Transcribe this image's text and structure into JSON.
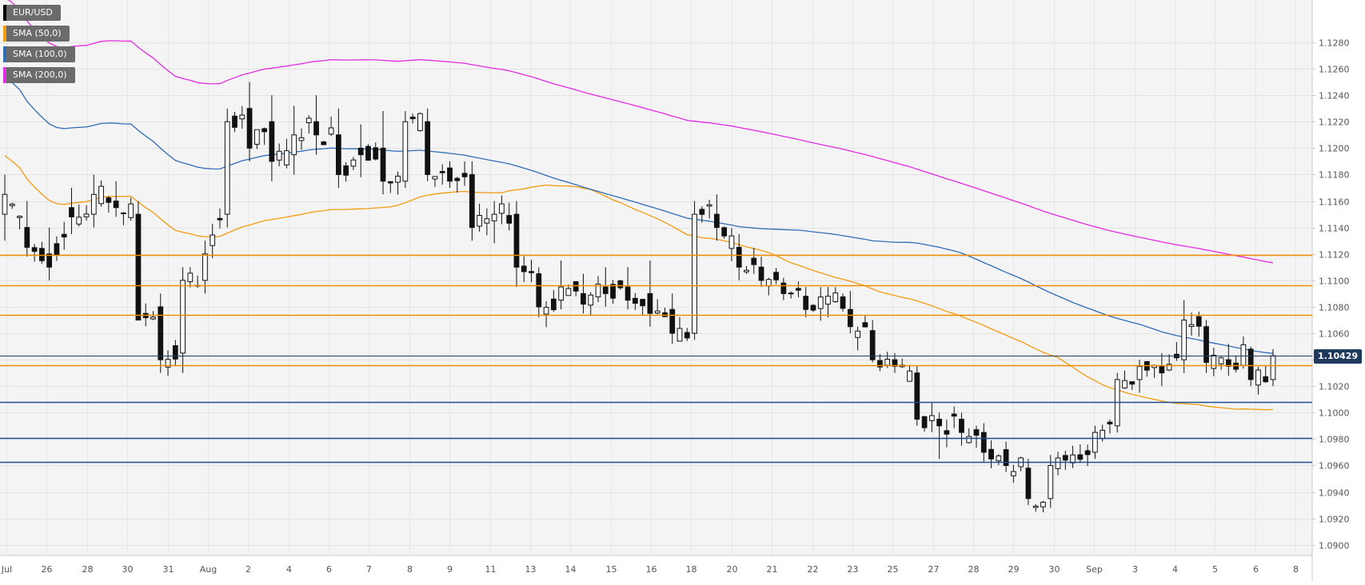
{
  "chart_data": {
    "type": "candlestick",
    "instrument": "EUR/USD",
    "timeframe": "4H",
    "y_range": [
      1.0892,
      1.1312
    ],
    "y_ticks": [
      "1.0900",
      "1.0920",
      "1.0940",
      "1.0960",
      "1.0980",
      "1.1000",
      "1.1020",
      "1.1040",
      "1.1060",
      "1.1080",
      "1.1100",
      "1.1120",
      "1.1140",
      "1.1160",
      "1.1180",
      "1.1200",
      "1.1220",
      "1.1240",
      "1.1260",
      "1.1280"
    ],
    "x_labels": [
      "Jul",
      "26",
      "28",
      "30",
      "31",
      "Aug",
      "2",
      "4",
      "6",
      "7",
      "8",
      "9",
      "11",
      "13",
      "14",
      "15",
      "16",
      "18",
      "20",
      "21",
      "22",
      "23",
      "25",
      "27",
      "28",
      "29",
      "30",
      "Sep",
      "3",
      "4",
      "5",
      "6",
      "8"
    ],
    "current_price": "1.10429",
    "grid": true,
    "legend": [
      {
        "name": "EUR/USD",
        "color": "#000000"
      },
      {
        "name": "SMA (50,0)",
        "color": "#f39c12"
      },
      {
        "name": "SMA (100,0)",
        "color": "#2f6db5"
      },
      {
        "name": "SMA (200,0)",
        "color": "#e22be2"
      }
    ],
    "resistance_levels": [
      1.1119,
      1.1096,
      1.1074,
      1.1036
    ],
    "support_levels": [
      1.1008,
      1.0981,
      1.0963
    ],
    "ohlc_anchors": [
      [
        1.115,
        1.118,
        1.113,
        1.1165
      ],
      [
        1.114,
        1.116,
        1.1118,
        1.1125
      ],
      [
        1.112,
        1.114,
        1.11,
        1.111
      ],
      [
        1.1155,
        1.117,
        1.1135,
        1.1148
      ],
      [
        1.115,
        1.118,
        1.114,
        1.1165
      ],
      [
        1.116,
        1.1175,
        1.1148,
        1.1155
      ],
      [
        1.115,
        1.116,
        1.1095,
        1.107
      ],
      [
        1.108,
        1.109,
        1.103,
        1.104
      ],
      [
        1.1045,
        1.111,
        1.103,
        1.11
      ],
      [
        1.11,
        1.113,
        1.109,
        1.112
      ],
      [
        1.115,
        1.123,
        1.114,
        1.122
      ],
      [
        1.123,
        1.125,
        1.119,
        1.12
      ],
      [
        1.122,
        1.124,
        1.1175,
        1.119
      ],
      [
        1.1195,
        1.1232,
        1.118,
        1.121
      ],
      [
        1.122,
        1.124,
        1.1195,
        1.121
      ],
      [
        1.121,
        1.123,
        1.117,
        1.118
      ],
      [
        1.12,
        1.1218,
        1.1178,
        1.1195
      ],
      [
        1.12,
        1.1228,
        1.1165,
        1.1175
      ],
      [
        1.1175,
        1.1228,
        1.117,
        1.122
      ],
      [
        1.122,
        1.123,
        1.1175,
        1.118
      ],
      [
        1.1185,
        1.119,
        1.117,
        1.1175
      ],
      [
        1.118,
        1.119,
        1.113,
        1.114
      ],
      [
        1.1145,
        1.116,
        1.1128,
        1.115
      ],
      [
        1.115,
        1.116,
        1.1095,
        1.111
      ],
      [
        1.1105,
        1.111,
        1.1072,
        1.108
      ],
      [
        1.1085,
        1.1115,
        1.1078,
        1.1095
      ],
      [
        1.109,
        1.1105,
        1.1075,
        1.1082
      ],
      [
        1.1095,
        1.111,
        1.108,
        1.109
      ],
      [
        1.1095,
        1.111,
        1.1078,
        1.1085
      ],
      [
        1.109,
        1.1115,
        1.1065,
        1.1075
      ],
      [
        1.1078,
        1.109,
        1.1052,
        1.106
      ],
      [
        1.106,
        1.116,
        1.1055,
        1.115
      ],
      [
        1.115,
        1.1165,
        1.113,
        1.114
      ],
      [
        1.1125,
        1.1135,
        1.11,
        1.111
      ],
      [
        1.111,
        1.1118,
        1.1095,
        1.11
      ],
      [
        1.1098,
        1.1102,
        1.1085,
        1.109
      ],
      [
        1.1088,
        1.1095,
        1.1072,
        1.1078
      ],
      [
        1.1082,
        1.1095,
        1.1072,
        1.1088
      ],
      [
        1.1078,
        1.1092,
        1.106,
        1.1065
      ],
      [
        1.1062,
        1.107,
        1.1038,
        1.104
      ],
      [
        1.104,
        1.1045,
        1.103,
        1.1035
      ],
      [
        1.103,
        1.1035,
        1.099,
        1.0995
      ],
      [
        1.0995,
        1.1,
        1.0965,
        1.099
      ],
      [
        1.0995,
        1.1,
        1.0975,
        1.0985
      ],
      [
        1.0985,
        1.0992,
        1.0962,
        1.097
      ],
      [
        1.0972,
        1.0978,
        1.0955,
        1.096
      ],
      [
        1.0958,
        1.0965,
        1.093,
        1.0935
      ],
      [
        1.0935,
        1.0968,
        1.0928,
        1.096
      ],
      [
        1.0962,
        1.0975,
        1.0958,
        1.0968
      ],
      [
        1.097,
        1.099,
        1.0965,
        1.0985
      ],
      [
        1.099,
        1.103,
        1.0985,
        1.1025
      ],
      [
        1.1025,
        1.104,
        1.1015,
        1.1035
      ],
      [
        1.1035,
        1.1045,
        1.102,
        1.103
      ],
      [
        1.104,
        1.1085,
        1.103,
        1.107
      ],
      [
        1.1065,
        1.107,
        1.103,
        1.1038
      ],
      [
        1.104,
        1.1052,
        1.1028,
        1.1035
      ],
      [
        1.1048,
        1.105,
        1.102,
        1.1025
      ],
      [
        1.1025,
        1.1048,
        1.102,
        1.1043
      ]
    ]
  }
}
